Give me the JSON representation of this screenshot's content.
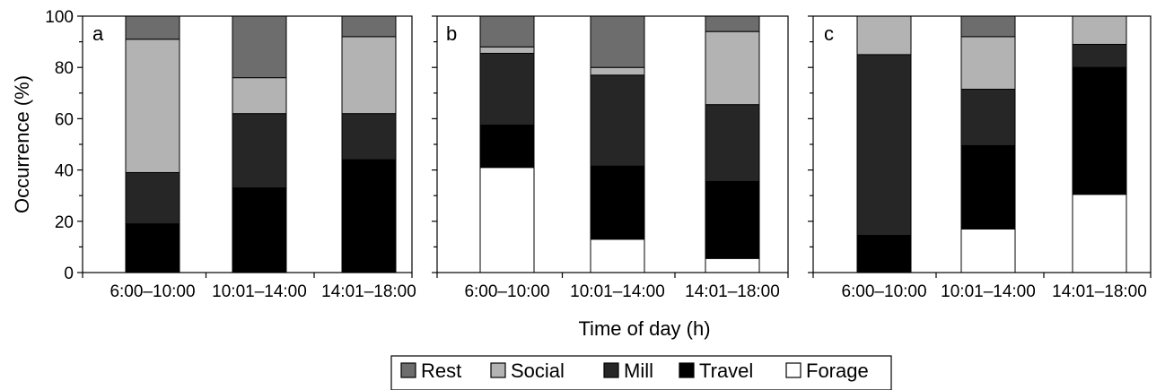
{
  "figure": {
    "ylabel": "Occurrence (%)",
    "xlabel": "Time of day (h)"
  },
  "colors": {
    "Rest": "#6d6d6d",
    "Social": "#b3b3b3",
    "Mill": "#262626",
    "Travel": "#000000",
    "Forage": "#ffffff"
  },
  "legend": [
    "Rest",
    "Social",
    "Mill",
    "Travel",
    "Forage"
  ],
  "chart_data": [
    {
      "type": "bar",
      "stacked": true,
      "panel": "a",
      "categories": [
        "6:00–10:00",
        "10:01–14:00",
        "14:01–18:00"
      ],
      "ylim": [
        0,
        100
      ],
      "yticks": [
        0,
        20,
        40,
        60,
        80,
        100
      ],
      "ylabel": "Occurrence (%)",
      "series": [
        {
          "name": "Forage",
          "values": [
            0,
            0,
            0
          ]
        },
        {
          "name": "Travel",
          "values": [
            19,
            33,
            44
          ]
        },
        {
          "name": "Mill",
          "values": [
            20,
            29,
            18
          ]
        },
        {
          "name": "Social",
          "values": [
            52,
            14,
            30
          ]
        },
        {
          "name": "Rest",
          "values": [
            9,
            24,
            8
          ]
        }
      ]
    },
    {
      "type": "bar",
      "stacked": true,
      "panel": "b",
      "categories": [
        "6:00–10:00",
        "10:01–14:00",
        "14:01–18:00"
      ],
      "ylim": [
        0,
        100
      ],
      "series": [
        {
          "name": "Forage",
          "values": [
            41,
            13,
            5.5
          ]
        },
        {
          "name": "Travel",
          "values": [
            16.5,
            28.5,
            30
          ]
        },
        {
          "name": "Mill",
          "values": [
            28,
            35.5,
            30
          ]
        },
        {
          "name": "Social",
          "values": [
            2.5,
            3,
            28.5
          ]
        },
        {
          "name": "Rest",
          "values": [
            12,
            20,
            6
          ]
        }
      ]
    },
    {
      "type": "bar",
      "stacked": true,
      "panel": "c",
      "categories": [
        "6:00–10:00",
        "10:01–14:00",
        "14:01–18:00"
      ],
      "ylim": [
        0,
        100
      ],
      "xlabel": "Time of day (h)",
      "series": [
        {
          "name": "Forage",
          "values": [
            0,
            17,
            30.5
          ]
        },
        {
          "name": "Travel",
          "values": [
            14.5,
            32.5,
            49.5
          ]
        },
        {
          "name": "Mill",
          "values": [
            70.5,
            22,
            9
          ]
        },
        {
          "name": "Social",
          "values": [
            15,
            20.5,
            11
          ]
        },
        {
          "name": "Rest",
          "values": [
            0,
            8,
            0
          ]
        }
      ]
    }
  ]
}
